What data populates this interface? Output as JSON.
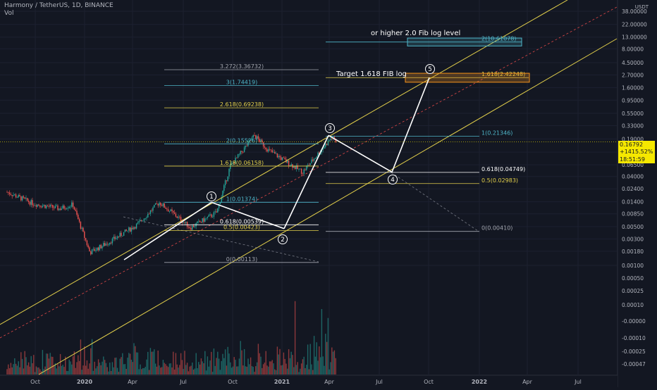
{
  "header": {
    "title": "Harmony / TetherUS, 1D, BINANCE",
    "sub": "Vol"
  },
  "price_axis": {
    "unit": "USDT",
    "ticks": [
      "38.00000",
      "22.00000",
      "13.00000",
      "8.00000",
      "4.50000",
      "2.70000",
      "1.60000",
      "0.95000",
      "0.55000",
      "0.33000",
      "0.19000",
      "0.11000",
      "0.06500",
      "0.04000",
      "0.02400",
      "0.01400",
      "0.00850",
      "0.00500",
      "0.00300",
      "0.00180",
      "0.00100"
    ],
    "vol_ticks": [
      "0.00050",
      "0.00025",
      "0.00010",
      "-0.00000",
      "-0.00010",
      "-0.00025",
      "-0.00047"
    ],
    "last_price": "0.16792",
    "change": "+1415.52%",
    "countdown": "18:51:59"
  },
  "time_axis": {
    "ticks": [
      "Oct",
      "2020",
      "Apr",
      "Jul",
      "Oct",
      "2021",
      "Apr",
      "Jul",
      "Oct",
      "2022",
      "Apr",
      "Jul"
    ]
  },
  "annotations": {
    "target_label": "Target 1.618 FIB log",
    "higher_label": "or higher 2.0 Fib log level",
    "wave_labels": [
      "1",
      "2",
      "3",
      "4",
      "5"
    ]
  },
  "fib_levels": {
    "f_3272": "3.272(3.36732)",
    "f_3": "3(1.74419)",
    "f_2618": "2.618(0.69238)",
    "f_2": "2(0.15526)",
    "f_1618_lo": "1.618(0.06158)",
    "f_1_lo": "1(0.01374)",
    "f_0618_lo": "0.618(0.00539)",
    "f_05_lo": "0.5(0.00423)",
    "f_0_lo": "0(0.00113)",
    "f_2_hi": "2(10.61078)",
    "f_1618_hi": "1.618(2.42248)",
    "f_1_hi": "1(0.21346)",
    "f_0618_hi": "0.618(0.04749)",
    "f_05_hi": "0.5(0.02983)",
    "f_0_hi": "0(0.00410)"
  },
  "colors": {
    "background": "#131722",
    "bull": "#26a69a",
    "bear": "#ef5350",
    "channel": "#e3d04b",
    "midline": "#e04848",
    "waves": "#ffffff",
    "fib_teal": "#4fb6c9",
    "fib_yellow": "#e3d04b",
    "fib_gray": "#a3a6af",
    "price_tag": "#f5e800"
  },
  "chart_data": {
    "type": "candlestick",
    "symbol": "Harmony / TetherUS",
    "timeframe": "1D",
    "exchange": "BINANCE",
    "scale": "log",
    "y_range": [
      0.001,
      38
    ],
    "x_range": [
      "2019-10",
      "2022-08"
    ],
    "price_path": [
      {
        "date": "2019-09",
        "price": 0.021
      },
      {
        "date": "2019-11",
        "price": 0.013
      },
      {
        "date": "2020-01",
        "price": 0.0105
      },
      {
        "date": "2020-02",
        "price": 0.0125
      },
      {
        "date": "2020-03-12",
        "price": 0.0017
      },
      {
        "date": "2020-05",
        "price": 0.0028
      },
      {
        "date": "2020-07",
        "price": 0.0055
      },
      {
        "date": "2020-08-20",
        "price": 0.0137
      },
      {
        "date": "2020-10",
        "price": 0.0075
      },
      {
        "date": "2020-11",
        "price": 0.0048
      },
      {
        "date": "2021-01",
        "price": 0.009
      },
      {
        "date": "2021-02",
        "price": 0.06
      },
      {
        "date": "2021-03-30",
        "price": 0.22
      },
      {
        "date": "2021-05",
        "price": 0.12
      },
      {
        "date": "2021-07-20",
        "price": 0.048
      },
      {
        "date": "2021-09",
        "price": 0.12
      },
      {
        "date": "2021-09-25",
        "price": 0.2
      },
      {
        "date": "2021-10-06",
        "price": 0.168
      }
    ],
    "elliott_waves": [
      {
        "label": "1",
        "date": "2020-08-20",
        "price": 0.0137
      },
      {
        "label": "2",
        "date": "2020-11-05",
        "price": 0.0046
      },
      {
        "label": "3",
        "date": "2021-03-30",
        "price": 0.22
      },
      {
        "label": "4",
        "date": "2021-07-20",
        "price": 0.048
      },
      {
        "label": "5",
        "date": "2021-10-10",
        "price": 2.42
      }
    ],
    "fib_levels": [
      {
        "ratio": 3.272,
        "price": 3.36732
      },
      {
        "ratio": 3,
        "price": 1.74419
      },
      {
        "ratio": 2.618,
        "price": 0.69238
      },
      {
        "ratio": 2,
        "price": 0.15526
      },
      {
        "ratio": 1.618,
        "price": 0.06158
      },
      {
        "ratio": 1,
        "price": 0.01374
      },
      {
        "ratio": 0.618,
        "price": 0.00539
      },
      {
        "ratio": 0.5,
        "price": 0.00423
      },
      {
        "ratio": 0,
        "price": 0.00113
      },
      {
        "ratio": 2,
        "price": 10.61078
      },
      {
        "ratio": 1.618,
        "price": 2.42248
      },
      {
        "ratio": 1,
        "price": 0.21346
      },
      {
        "ratio": 0.618,
        "price": 0.04749
      },
      {
        "ratio": 0.5,
        "price": 0.02983
      },
      {
        "ratio": 0,
        "price": 0.0041
      }
    ],
    "last_price": 0.16792,
    "change_pct": 1415.52
  }
}
